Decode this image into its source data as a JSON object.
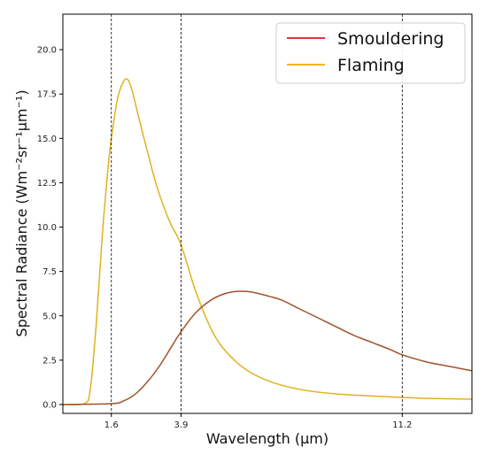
{
  "chart_data": {
    "type": "line",
    "xlabel": "Wavelength (μm)",
    "ylabel": "Spectral Radiance (Wm⁻²sr⁻¹μm⁻¹)",
    "xlim": [
      0,
      13.5
    ],
    "ylim": [
      -0.5,
      22
    ],
    "x_ticks": [
      {
        "value": 1.6,
        "label": "1.6"
      },
      {
        "value": 3.9,
        "label": "3.9"
      },
      {
        "value": 11.2,
        "label": "11.2"
      }
    ],
    "y_ticks": [
      {
        "value": 0,
        "label": "0.0"
      },
      {
        "value": 2.5,
        "label": "2.5"
      },
      {
        "value": 5,
        "label": "5.0"
      },
      {
        "value": 7.5,
        "label": "7.5"
      },
      {
        "value": 10,
        "label": "10.0"
      },
      {
        "value": 12.5,
        "label": "12.5"
      },
      {
        "value": 15,
        "label": "15.0"
      },
      {
        "value": 17.5,
        "label": "17.5"
      },
      {
        "value": 20,
        "label": "20.0"
      }
    ],
    "vlines": [
      1.6,
      3.9,
      11.2
    ],
    "grid": false,
    "legend_position": "top-right",
    "series": [
      {
        "name": "Smouldering",
        "color": "#e8323c",
        "display_color": "#a0522d",
        "x": [
          0,
          1.6,
          2.0,
          2.4,
          2.8,
          3.2,
          3.6,
          3.9,
          4.4,
          5.0,
          5.6,
          6.2,
          6.8,
          7.2,
          7.8,
          8.4,
          9.0,
          9.6,
          10.2,
          10.8,
          11.2,
          12.0,
          12.6,
          13.5
        ],
        "y": [
          0,
          0.05,
          0.2,
          0.6,
          1.3,
          2.2,
          3.3,
          4.1,
          5.2,
          6.0,
          6.35,
          6.35,
          6.1,
          5.9,
          5.4,
          4.9,
          4.4,
          3.9,
          3.5,
          3.1,
          2.8,
          2.4,
          2.2,
          1.9
        ]
      },
      {
        "name": "Flaming",
        "color": "#f5b324",
        "display_color": "#e0b21f",
        "x": [
          0,
          0.7,
          0.9,
          1.1,
          1.3,
          1.5,
          1.6,
          1.8,
          2.0,
          2.15,
          2.3,
          2.5,
          2.8,
          3.1,
          3.5,
          3.9,
          4.4,
          5.0,
          5.6,
          6.2,
          7.0,
          8.0,
          9.0,
          10.0,
          11.2,
          12.0,
          13.5
        ],
        "y": [
          0,
          0.05,
          0.8,
          4.5,
          9.5,
          13.5,
          15.0,
          17.2,
          18.2,
          18.3,
          17.6,
          16.2,
          14.2,
          12.3,
          10.4,
          9.0,
          6.3,
          3.9,
          2.6,
          1.8,
          1.2,
          0.8,
          0.6,
          0.5,
          0.4,
          0.35,
          0.3
        ]
      }
    ]
  }
}
